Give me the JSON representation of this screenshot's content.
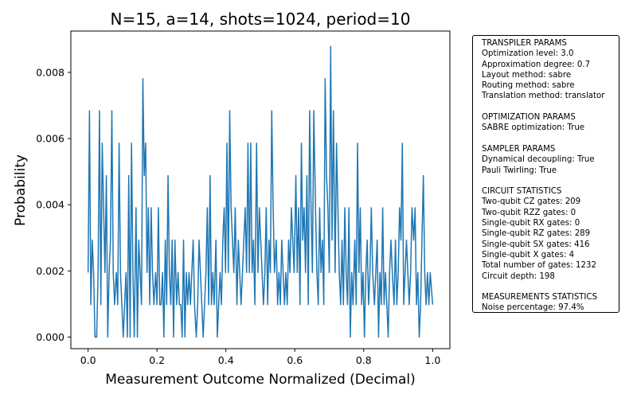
{
  "chart_data": {
    "type": "line",
    "title": "N=15, a=14, shots=1024, period=10",
    "xlabel": "Measurement Outcome Normalized (Decimal)",
    "ylabel": "Probability",
    "xlim": [
      -0.05,
      1.05
    ],
    "ylim": [
      -0.00035,
      0.00925
    ],
    "xticks": [
      "0.0",
      "0.2",
      "0.4",
      "0.6",
      "0.8",
      "1.0"
    ],
    "yticks": [
      "0.000",
      "0.002",
      "0.004",
      "0.006",
      "0.008"
    ],
    "grid": false,
    "legend": "none",
    "series": [
      {
        "color": "#1f77b4",
        "x": [
          0.0,
          0.004,
          0.008,
          0.012,
          0.016,
          0.02,
          0.025,
          0.029,
          0.033,
          0.037,
          0.041,
          0.045,
          0.049,
          0.053,
          0.057,
          0.061,
          0.065,
          0.069,
          0.073,
          0.077,
          0.082,
          0.086,
          0.09,
          0.094,
          0.098,
          0.102,
          0.106,
          0.11,
          0.114,
          0.118,
          0.122,
          0.126,
          0.13,
          0.134,
          0.139,
          0.143,
          0.147,
          0.151,
          0.155,
          0.159,
          0.163,
          0.167,
          0.171,
          0.175,
          0.179,
          0.183,
          0.187,
          0.191,
          0.196,
          0.2,
          0.204,
          0.208,
          0.212,
          0.216,
          0.22,
          0.224,
          0.228,
          0.232,
          0.236,
          0.24,
          0.244,
          0.248,
          0.252,
          0.257,
          0.261,
          0.265,
          0.269,
          0.273,
          0.277,
          0.281,
          0.285,
          0.289,
          0.293,
          0.297,
          0.301,
          0.305,
          0.309,
          0.314,
          0.318,
          0.322,
          0.326,
          0.33,
          0.334,
          0.338,
          0.342,
          0.346,
          0.35,
          0.354,
          0.358,
          0.362,
          0.366,
          0.371,
          0.375,
          0.379,
          0.383,
          0.387,
          0.391,
          0.395,
          0.399,
          0.403,
          0.407,
          0.411,
          0.415,
          0.419,
          0.423,
          0.427,
          0.432,
          0.436,
          0.44,
          0.444,
          0.448,
          0.452,
          0.456,
          0.46,
          0.464,
          0.468,
          0.472,
          0.476,
          0.48,
          0.484,
          0.489,
          0.493,
          0.497,
          0.501,
          0.505,
          0.509,
          0.513,
          0.517,
          0.521,
          0.525,
          0.529,
          0.533,
          0.537,
          0.541,
          0.546,
          0.55,
          0.554,
          0.558,
          0.562,
          0.566,
          0.57,
          0.574,
          0.578,
          0.582,
          0.586,
          0.59,
          0.594,
          0.598,
          0.603,
          0.607,
          0.611,
          0.615,
          0.619,
          0.623,
          0.627,
          0.631,
          0.635,
          0.639,
          0.643,
          0.647,
          0.651,
          0.655,
          0.66,
          0.664,
          0.668,
          0.672,
          0.676,
          0.68,
          0.684,
          0.688,
          0.692,
          0.696,
          0.7,
          0.704,
          0.708,
          0.712,
          0.717,
          0.721,
          0.725,
          0.729,
          0.733,
          0.737,
          0.741,
          0.745,
          0.749,
          0.753,
          0.757,
          0.761,
          0.765,
          0.769,
          0.774,
          0.778,
          0.782,
          0.786,
          0.79,
          0.794,
          0.798,
          0.802,
          0.806,
          0.81,
          0.814,
          0.818,
          0.822,
          0.826,
          0.831,
          0.835,
          0.839,
          0.843,
          0.847,
          0.851,
          0.855,
          0.859,
          0.863,
          0.867,
          0.871,
          0.875,
          0.879,
          0.883,
          0.888,
          0.892,
          0.896,
          0.9,
          0.904,
          0.908,
          0.912,
          0.916,
          0.92,
          0.924,
          0.928,
          0.932,
          0.936,
          0.94,
          0.945,
          0.949,
          0.953,
          0.957,
          0.961,
          0.965,
          0.969,
          0.973,
          0.977,
          0.981,
          0.985,
          0.989,
          0.993,
          1.0
        ],
        "y": [
          0.00195,
          0.00684,
          0.00098,
          0.00293,
          0.00195,
          0.0,
          0.0,
          0.00195,
          0.00684,
          0.00098,
          0.00586,
          0.00391,
          0.00195,
          0.00488,
          0.0,
          0.00195,
          0.00293,
          0.00684,
          0.00195,
          0.00098,
          0.00195,
          0.00098,
          0.00586,
          0.00195,
          0.00098,
          0.0,
          0.00098,
          0.00195,
          0.0,
          0.00488,
          0.0,
          0.00586,
          0.00195,
          0.0,
          0.00391,
          0.0,
          0.00293,
          0.00195,
          0.00098,
          0.00781,
          0.00488,
          0.00586,
          0.00195,
          0.00391,
          0.00098,
          0.00391,
          0.00195,
          0.00098,
          0.00195,
          0.00098,
          0.00391,
          0.00098,
          0.00098,
          0.00195,
          0.0,
          0.00293,
          0.00098,
          0.00488,
          0.00195,
          0.00098,
          0.00293,
          0.0,
          0.00293,
          0.00098,
          0.00195,
          0.00098,
          0.00098,
          0.0,
          0.00293,
          0.0,
          0.00195,
          0.00098,
          0.00195,
          0.00098,
          0.00195,
          0.00293,
          0.00098,
          0.0,
          0.00098,
          0.00293,
          0.00195,
          0.00098,
          0.0,
          0.00098,
          0.00195,
          0.00391,
          0.00098,
          0.00488,
          0.00098,
          0.00195,
          0.00098,
          0.00293,
          0.0,
          0.00098,
          0.00195,
          0.00098,
          0.00293,
          0.00391,
          0.00195,
          0.00586,
          0.00195,
          0.00684,
          0.00391,
          0.00293,
          0.00195,
          0.00391,
          0.00098,
          0.00293,
          0.00195,
          0.00098,
          0.00195,
          0.00293,
          0.00391,
          0.00195,
          0.00586,
          0.00195,
          0.00586,
          0.00195,
          0.00293,
          0.00098,
          0.00586,
          0.00195,
          0.00391,
          0.00293,
          0.00195,
          0.00098,
          0.00195,
          0.00391,
          0.00098,
          0.00293,
          0.00195,
          0.00684,
          0.00391,
          0.00195,
          0.00293,
          0.00098,
          0.00195,
          0.00098,
          0.00293,
          0.00195,
          0.00098,
          0.00195,
          0.00098,
          0.00293,
          0.00195,
          0.00391,
          0.00293,
          0.00195,
          0.00488,
          0.00195,
          0.00391,
          0.00098,
          0.00586,
          0.00293,
          0.00391,
          0.00195,
          0.00488,
          0.00098,
          0.00684,
          0.00391,
          0.00195,
          0.00684,
          0.00391,
          0.00195,
          0.00098,
          0.00391,
          0.00195,
          0.00293,
          0.00098,
          0.00781,
          0.00488,
          0.00391,
          0.00195,
          0.00879,
          0.00293,
          0.00684,
          0.00195,
          0.00586,
          0.00391,
          0.00195,
          0.00098,
          0.00293,
          0.00098,
          0.00391,
          0.00195,
          0.00098,
          0.00391,
          0.0,
          0.00195,
          0.00098,
          0.00293,
          0.00098,
          0.00586,
          0.00195,
          0.00391,
          0.00098,
          0.00195,
          0.0,
          0.00195,
          0.00293,
          0.00098,
          0.00195,
          0.00391,
          0.00195,
          0.00098,
          0.00195,
          0.00293,
          0.0,
          0.00195,
          0.00098,
          0.00391,
          0.00098,
          0.00195,
          0.00098,
          0.0,
          0.00195,
          0.00293,
          0.00195,
          0.00098,
          0.00293,
          0.00098,
          0.00195,
          0.00391,
          0.00293,
          0.00586,
          0.00098,
          0.00195,
          0.00293,
          0.00195,
          0.00098,
          0.00195,
          0.00391,
          0.00293,
          0.00391,
          0.00098,
          0.00195,
          0.0,
          0.00098,
          0.00293,
          0.00488,
          0.00195,
          0.00098,
          0.00195,
          0.00098,
          0.00195,
          0.00098
        ]
      }
    ]
  },
  "info_box": {
    "lines": [
      "TRANSPILER PARAMS",
      "Optimization level: 3.0",
      "Approximation degree: 0.7",
      "Layout method: sabre",
      "Routing method: sabre",
      "Translation method: translator",
      "",
      "OPTIMIZATION PARAMS",
      "SABRE optimization: True",
      "",
      "SAMPLER PARAMS",
      "Dynamical decoupling: True",
      "Pauli Twirling: True",
      "",
      "CIRCUIT STATISTICS",
      "Two-qubit CZ gates: 209",
      "Two-qubit RZZ gates: 0",
      "Single-qubit RX gates: 0",
      "Single-qubit RZ gates: 289",
      "Single-qubit SX gates: 416",
      "Single-qubit X gates: 4",
      "Total number of gates: 1232",
      "Circuit depth: 198",
      "",
      "MEASUREMENTS STATISTICS",
      "Noise percentage: 97.4%"
    ]
  }
}
